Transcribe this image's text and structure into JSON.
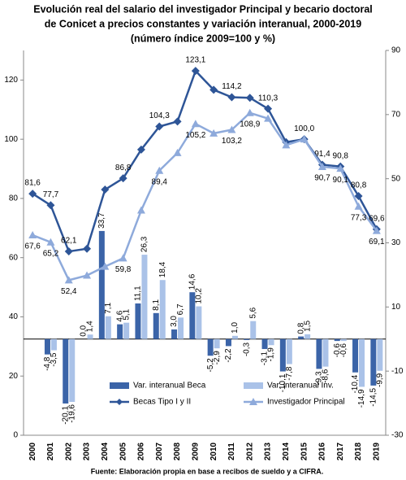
{
  "chart_data": {
    "type": "combo",
    "title": [
      "Evolución real del salario del investigador Principal y becario doctoral",
      "de Conicet a precios constantes y variación interanual, 2000-2019",
      "(número índice 2009=100 y %)"
    ],
    "source": "Fuente: Elaboración propia en base a recibos de sueldo y a CIFRA.",
    "categories": [
      "2000",
      "2001",
      "2002",
      "2003",
      "2004",
      "2005",
      "2006",
      "2007",
      "2008",
      "2009",
      "2010",
      "2011",
      "2012",
      "2013",
      "2014",
      "2015",
      "2016",
      "2017",
      "2018",
      "2019"
    ],
    "ylim": [
      0,
      130
    ],
    "yticks": [
      0,
      20,
      40,
      60,
      80,
      100,
      120
    ],
    "y2lim": [
      -30,
      90
    ],
    "y2ticks": [
      -30,
      -10,
      10,
      30,
      50,
      70,
      90
    ],
    "legend": "lower-left",
    "series": [
      {
        "name": "Var. interanual Beca",
        "type": "bar",
        "axis": "y2",
        "color": "#3b64a8",
        "values": [
          null,
          -4.8,
          -20.1,
          0.0,
          33.7,
          4.6,
          11.1,
          8.1,
          3.0,
          14.6,
          -5.2,
          -2.2,
          -0.3,
          -3.1,
          -10.1,
          0.8,
          -9.3,
          -0.6,
          -10.4,
          -14.5
        ],
        "value_labels": [
          null,
          "-4,8",
          "-20,1",
          "0,0",
          "33,7",
          "4,6",
          "11,1",
          "8,1",
          "3,0",
          "14,6",
          "-5,2",
          "-2,2",
          "-0,3",
          "-3,1",
          "-10,1",
          "0,8",
          "-9,3",
          "-0,6",
          "-10,4",
          "-14,5"
        ]
      },
      {
        "name": "Var. interanual Inv.",
        "type": "bar",
        "axis": "y2",
        "color": "#aac2e8",
        "values": [
          null,
          -3.5,
          -19.6,
          1.4,
          7.1,
          5.1,
          26.3,
          18.4,
          6.7,
          10.2,
          -2.9,
          1.0,
          5.6,
          -1.9,
          -7.8,
          1.5,
          -8.6,
          -0.6,
          -14.9,
          -9.9
        ],
        "value_labels": [
          null,
          "-3,5",
          "-19,6",
          "1,4",
          "7,1",
          "5,1",
          "26,3",
          "18,4",
          "6,7",
          "10,2",
          "-2,9",
          "1,0",
          "5,6",
          "-1,9",
          "-7,8",
          "1,5",
          "-8,6",
          "-0,6",
          "-14,9",
          "-9,9"
        ]
      },
      {
        "name": "Becas Tipo I y II",
        "type": "line",
        "marker": "diamond",
        "color": "#2e5597",
        "values": [
          81.6,
          77.7,
          62.1,
          63,
          83,
          86.8,
          96.5,
          104.3,
          106,
          123.1,
          116.7,
          114.2,
          114,
          110.3,
          99,
          100.0,
          91.4,
          90.8,
          80.8,
          69.6
        ],
        "value_labels": [
          "81,6",
          "77,7",
          "62,1",
          null,
          null,
          "86,8",
          null,
          "104,3",
          null,
          "123,1",
          null,
          "114,2",
          null,
          "110,3",
          null,
          "100,0",
          "91,4",
          "90,8",
          "80,8",
          "69,6"
        ]
      },
      {
        "name": "Investigador Principal",
        "type": "line",
        "marker": "triangle",
        "color": "#8eaadb",
        "values": [
          67.6,
          65.2,
          52.4,
          54,
          57,
          59.8,
          76,
          89.4,
          95.4,
          105.2,
          102,
          103.2,
          108.9,
          107,
          98,
          100,
          90.7,
          90.1,
          77.3,
          69.1
        ],
        "value_labels": [
          "67,6",
          "65,2",
          "52,4",
          null,
          null,
          "59,8",
          null,
          "89,4",
          null,
          "105,2",
          null,
          "103,2",
          "108,9",
          null,
          null,
          null,
          "90,7",
          "90,1",
          "77,3",
          "69,1"
        ]
      }
    ]
  }
}
